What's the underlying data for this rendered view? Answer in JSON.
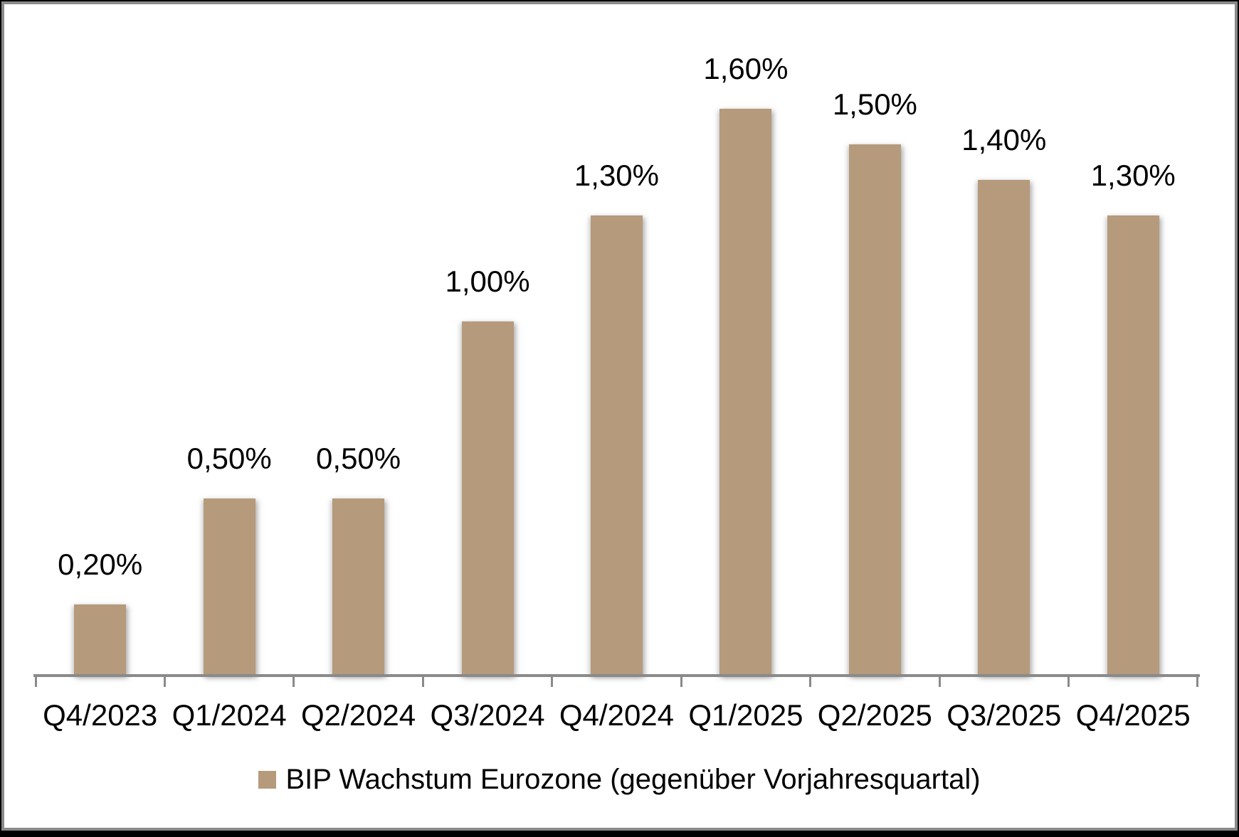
{
  "chart_data": {
    "type": "bar",
    "title": "",
    "categories": [
      "Q4/2023",
      "Q1/2024",
      "Q2/2024",
      "Q3/2024",
      "Q4/2024",
      "Q1/2025",
      "Q2/2025",
      "Q3/2025",
      "Q4/2025"
    ],
    "values": [
      0.2,
      0.5,
      0.5,
      1.0,
      1.3,
      1.6,
      1.5,
      1.4,
      1.3
    ],
    "data_labels": [
      "0,20%",
      "0,50%",
      "0,50%",
      "1,00%",
      "1,30%",
      "1,60%",
      "1,50%",
      "1,40%",
      "1,30%"
    ],
    "series_name": "BIP Wachstum Eurozone (gegenüber Vorjahresquartal)",
    "xlabel": "",
    "ylabel": "",
    "ylim": [
      0,
      1.7
    ],
    "y_axis_visible": false,
    "x_axis_visible": true,
    "grid": false,
    "legend_position": "bottom",
    "colors": {
      "bar": "#b59a7c",
      "axis": "#8a8a8a",
      "label_text": "#000000",
      "background": "#ffffff",
      "frame_border": "#8a8a8a",
      "outer_frame": "#000000"
    }
  },
  "legend": {
    "swatch_icon": "legend-swatch-square"
  }
}
